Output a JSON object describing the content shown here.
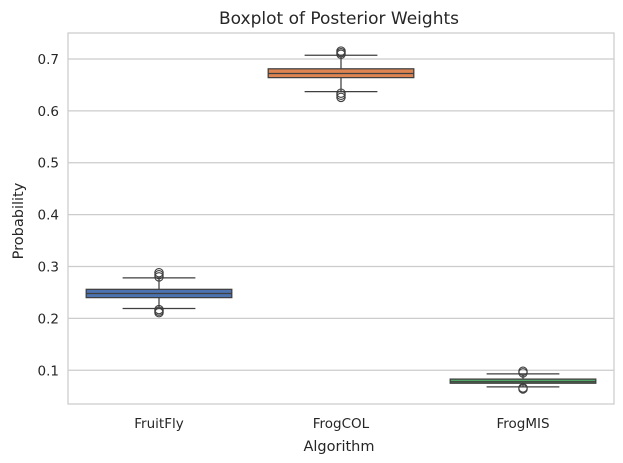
{
  "chart_data": {
    "type": "box",
    "title": "Boxplot of Posterior Weights",
    "xlabel": "Algorithm",
    "ylabel": "Probability",
    "ylim": [
      0.035,
      0.75
    ],
    "yticks": [
      0.1,
      0.2,
      0.3,
      0.4,
      0.5,
      0.6,
      0.7
    ],
    "ytick_labels": [
      "0.1",
      "0.2",
      "0.3",
      "0.4",
      "0.5",
      "0.6",
      "0.7"
    ],
    "grid": true,
    "categories": [
      "FruitFly",
      "FrogCOL",
      "FrogMIS"
    ],
    "boxes": [
      {
        "name": "FruitFly",
        "color": "#4c72b0",
        "whisker_low": 0.219,
        "q1": 0.24,
        "median": 0.248,
        "q3": 0.256,
        "whisker_high": 0.278,
        "outliers_low": [
          0.217,
          0.214,
          0.211
        ],
        "outliers_high": [
          0.28,
          0.284,
          0.288
        ]
      },
      {
        "name": "FrogCOL",
        "color": "#dd8452",
        "whisker_low": 0.637,
        "q1": 0.664,
        "median": 0.672,
        "q3": 0.681,
        "whisker_high": 0.707,
        "outliers_low": [
          0.634,
          0.63,
          0.626
        ],
        "outliers_high": [
          0.709,
          0.712,
          0.715
        ]
      },
      {
        "name": "FrogMIS",
        "color": "#55a868",
        "whisker_low": 0.068,
        "q1": 0.075,
        "median": 0.078,
        "q3": 0.083,
        "whisker_high": 0.093,
        "outliers_low": [
          0.066,
          0.064
        ],
        "outliers_high": [
          0.095,
          0.098
        ]
      }
    ]
  },
  "colors": {
    "grid": "#cccccc",
    "spine": "#cccccc",
    "line": "#3f3f3f"
  }
}
